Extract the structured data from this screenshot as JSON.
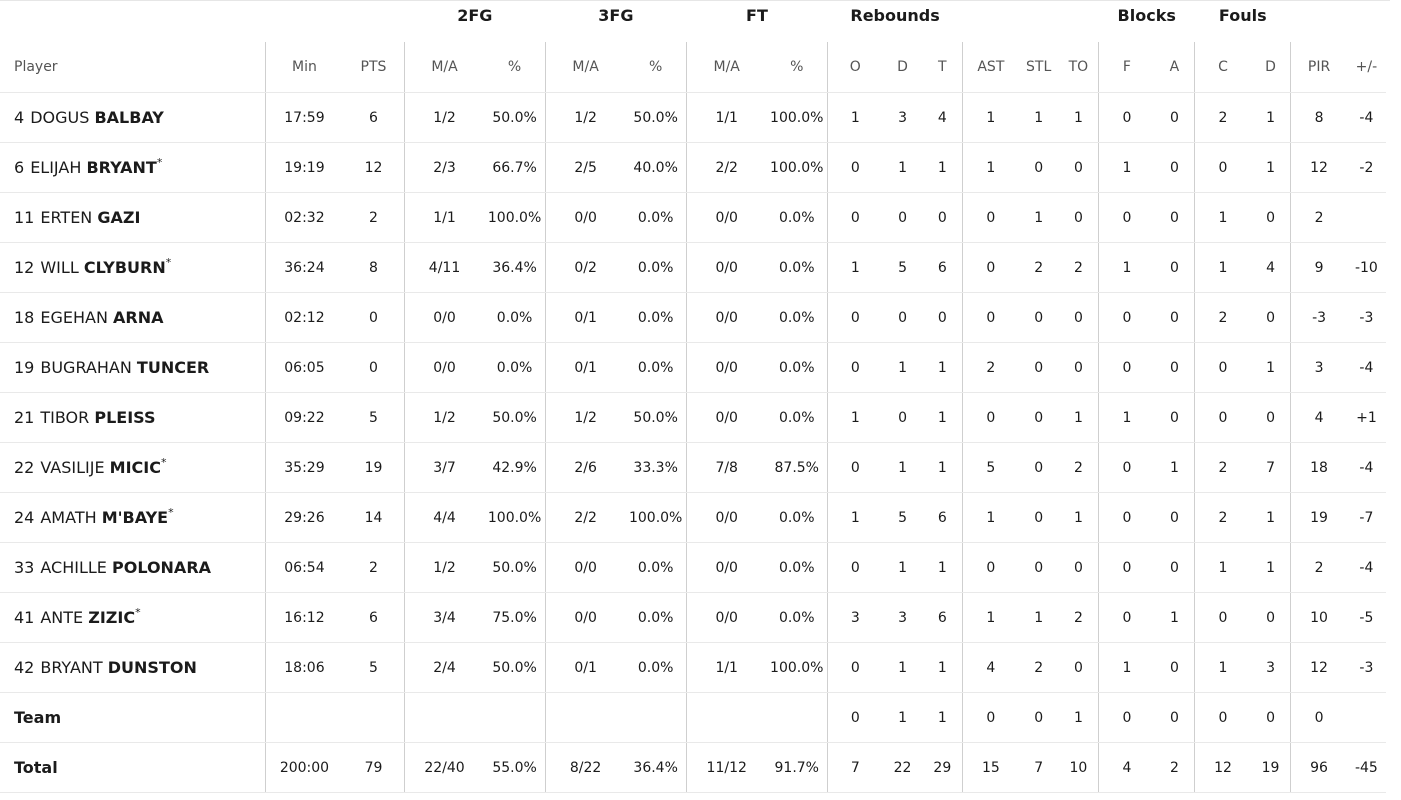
{
  "groups": {
    "fg2": "2FG",
    "fg3": "3FG",
    "ft": "FT",
    "rebounds": "Rebounds",
    "blocks": "Blocks",
    "fouls": "Fouls"
  },
  "headers": {
    "player": "Player",
    "min": "Min",
    "pts": "PTS",
    "fg2_ma": "M/A",
    "fg2_pct": "%",
    "fg3_ma": "M/A",
    "fg3_pct": "%",
    "ft_ma": "M/A",
    "ft_pct": "%",
    "reb_o": "O",
    "reb_d": "D",
    "reb_t": "T",
    "ast": "AST",
    "stl": "STL",
    "to": "TO",
    "blk_f": "F",
    "blk_a": "A",
    "foul_c": "C",
    "foul_d": "D",
    "pir": "PIR",
    "pm": "+/-"
  },
  "players": [
    {
      "num": "4",
      "first": "DOGUS",
      "last": "BALBAY",
      "star": "",
      "min": "17:59",
      "pts": "6",
      "fg2_ma": "1/2",
      "fg2_pct": "50.0%",
      "fg3_ma": "1/2",
      "fg3_pct": "50.0%",
      "ft_ma": "1/1",
      "ft_pct": "100.0%",
      "reb_o": "1",
      "reb_d": "3",
      "reb_t": "4",
      "ast": "1",
      "stl": "1",
      "to": "1",
      "blk_f": "0",
      "blk_a": "0",
      "foul_c": "2",
      "foul_d": "1",
      "pir": "8",
      "pm": "-4"
    },
    {
      "num": "6",
      "first": "ELIJAH",
      "last": "BRYANT",
      "star": "*",
      "min": "19:19",
      "pts": "12",
      "fg2_ma": "2/3",
      "fg2_pct": "66.7%",
      "fg3_ma": "2/5",
      "fg3_pct": "40.0%",
      "ft_ma": "2/2",
      "ft_pct": "100.0%",
      "reb_o": "0",
      "reb_d": "1",
      "reb_t": "1",
      "ast": "1",
      "stl": "0",
      "to": "0",
      "blk_f": "1",
      "blk_a": "0",
      "foul_c": "0",
      "foul_d": "1",
      "pir": "12",
      "pm": "-2"
    },
    {
      "num": "11",
      "first": "ERTEN",
      "last": "GAZI",
      "star": "",
      "min": "02:32",
      "pts": "2",
      "fg2_ma": "1/1",
      "fg2_pct": "100.0%",
      "fg3_ma": "0/0",
      "fg3_pct": "0.0%",
      "ft_ma": "0/0",
      "ft_pct": "0.0%",
      "reb_o": "0",
      "reb_d": "0",
      "reb_t": "0",
      "ast": "0",
      "stl": "1",
      "to": "0",
      "blk_f": "0",
      "blk_a": "0",
      "foul_c": "1",
      "foul_d": "0",
      "pir": "2",
      "pm": ""
    },
    {
      "num": "12",
      "first": "WILL",
      "last": "CLYBURN",
      "star": "*",
      "min": "36:24",
      "pts": "8",
      "fg2_ma": "4/11",
      "fg2_pct": "36.4%",
      "fg3_ma": "0/2",
      "fg3_pct": "0.0%",
      "ft_ma": "0/0",
      "ft_pct": "0.0%",
      "reb_o": "1",
      "reb_d": "5",
      "reb_t": "6",
      "ast": "0",
      "stl": "2",
      "to": "2",
      "blk_f": "1",
      "blk_a": "0",
      "foul_c": "1",
      "foul_d": "4",
      "pir": "9",
      "pm": "-10"
    },
    {
      "num": "18",
      "first": "EGEHAN",
      "last": "ARNA",
      "star": "",
      "min": "02:12",
      "pts": "0",
      "fg2_ma": "0/0",
      "fg2_pct": "0.0%",
      "fg3_ma": "0/1",
      "fg3_pct": "0.0%",
      "ft_ma": "0/0",
      "ft_pct": "0.0%",
      "reb_o": "0",
      "reb_d": "0",
      "reb_t": "0",
      "ast": "0",
      "stl": "0",
      "to": "0",
      "blk_f": "0",
      "blk_a": "0",
      "foul_c": "2",
      "foul_d": "0",
      "pir": "-3",
      "pm": "-3"
    },
    {
      "num": "19",
      "first": "BUGRAHAN",
      "last": "TUNCER",
      "star": "",
      "min": "06:05",
      "pts": "0",
      "fg2_ma": "0/0",
      "fg2_pct": "0.0%",
      "fg3_ma": "0/1",
      "fg3_pct": "0.0%",
      "ft_ma": "0/0",
      "ft_pct": "0.0%",
      "reb_o": "0",
      "reb_d": "1",
      "reb_t": "1",
      "ast": "2",
      "stl": "0",
      "to": "0",
      "blk_f": "0",
      "blk_a": "0",
      "foul_c": "0",
      "foul_d": "1",
      "pir": "3",
      "pm": "-4"
    },
    {
      "num": "21",
      "first": "TIBOR",
      "last": "PLEISS",
      "star": "",
      "min": "09:22",
      "pts": "5",
      "fg2_ma": "1/2",
      "fg2_pct": "50.0%",
      "fg3_ma": "1/2",
      "fg3_pct": "50.0%",
      "ft_ma": "0/0",
      "ft_pct": "0.0%",
      "reb_o": "1",
      "reb_d": "0",
      "reb_t": "1",
      "ast": "0",
      "stl": "0",
      "to": "1",
      "blk_f": "1",
      "blk_a": "0",
      "foul_c": "0",
      "foul_d": "0",
      "pir": "4",
      "pm": "+1"
    },
    {
      "num": "22",
      "first": "VASILIJE",
      "last": "MICIC",
      "star": "*",
      "min": "35:29",
      "pts": "19",
      "fg2_ma": "3/7",
      "fg2_pct": "42.9%",
      "fg3_ma": "2/6",
      "fg3_pct": "33.3%",
      "ft_ma": "7/8",
      "ft_pct": "87.5%",
      "reb_o": "0",
      "reb_d": "1",
      "reb_t": "1",
      "ast": "5",
      "stl": "0",
      "to": "2",
      "blk_f": "0",
      "blk_a": "1",
      "foul_c": "2",
      "foul_d": "7",
      "pir": "18",
      "pm": "-4"
    },
    {
      "num": "24",
      "first": "AMATH",
      "last": "M'BAYE",
      "star": "*",
      "min": "29:26",
      "pts": "14",
      "fg2_ma": "4/4",
      "fg2_pct": "100.0%",
      "fg3_ma": "2/2",
      "fg3_pct": "100.0%",
      "ft_ma": "0/0",
      "ft_pct": "0.0%",
      "reb_o": "1",
      "reb_d": "5",
      "reb_t": "6",
      "ast": "1",
      "stl": "0",
      "to": "1",
      "blk_f": "0",
      "blk_a": "0",
      "foul_c": "2",
      "foul_d": "1",
      "pir": "19",
      "pm": "-7"
    },
    {
      "num": "33",
      "first": "ACHILLE",
      "last": "POLONARA",
      "star": "",
      "min": "06:54",
      "pts": "2",
      "fg2_ma": "1/2",
      "fg2_pct": "50.0%",
      "fg3_ma": "0/0",
      "fg3_pct": "0.0%",
      "ft_ma": "0/0",
      "ft_pct": "0.0%",
      "reb_o": "0",
      "reb_d": "1",
      "reb_t": "1",
      "ast": "0",
      "stl": "0",
      "to": "0",
      "blk_f": "0",
      "blk_a": "0",
      "foul_c": "1",
      "foul_d": "1",
      "pir": "2",
      "pm": "-4"
    },
    {
      "num": "41",
      "first": "ANTE",
      "last": "ZIZIC",
      "star": "*",
      "min": "16:12",
      "pts": "6",
      "fg2_ma": "3/4",
      "fg2_pct": "75.0%",
      "fg3_ma": "0/0",
      "fg3_pct": "0.0%",
      "ft_ma": "0/0",
      "ft_pct": "0.0%",
      "reb_o": "3",
      "reb_d": "3",
      "reb_t": "6",
      "ast": "1",
      "stl": "1",
      "to": "2",
      "blk_f": "0",
      "blk_a": "1",
      "foul_c": "0",
      "foul_d": "0",
      "pir": "10",
      "pm": "-5"
    },
    {
      "num": "42",
      "first": "BRYANT",
      "last": "DUNSTON",
      "star": "",
      "min": "18:06",
      "pts": "5",
      "fg2_ma": "2/4",
      "fg2_pct": "50.0%",
      "fg3_ma": "0/1",
      "fg3_pct": "0.0%",
      "ft_ma": "1/1",
      "ft_pct": "100.0%",
      "reb_o": "0",
      "reb_d": "1",
      "reb_t": "1",
      "ast": "4",
      "stl": "2",
      "to": "0",
      "blk_f": "1",
      "blk_a": "0",
      "foul_c": "1",
      "foul_d": "3",
      "pir": "12",
      "pm": "-3"
    }
  ],
  "team": {
    "label": "Team",
    "min": "",
    "pts": "",
    "fg2_ma": "",
    "fg2_pct": "",
    "fg3_ma": "",
    "fg3_pct": "",
    "ft_ma": "",
    "ft_pct": "",
    "reb_o": "0",
    "reb_d": "1",
    "reb_t": "1",
    "ast": "0",
    "stl": "0",
    "to": "1",
    "blk_f": "0",
    "blk_a": "0",
    "foul_c": "0",
    "foul_d": "0",
    "pir": "0",
    "pm": ""
  },
  "total": {
    "label": "Total",
    "min": "200:00",
    "pts": "79",
    "fg2_ma": "22/40",
    "fg2_pct": "55.0%",
    "fg3_ma": "8/22",
    "fg3_pct": "36.4%",
    "ft_ma": "11/12",
    "ft_pct": "91.7%",
    "reb_o": "7",
    "reb_d": "22",
    "reb_t": "29",
    "ast": "15",
    "stl": "7",
    "to": "10",
    "blk_f": "4",
    "blk_a": "2",
    "foul_c": "12",
    "foul_d": "19",
    "pir": "96",
    "pm": "-45"
  }
}
